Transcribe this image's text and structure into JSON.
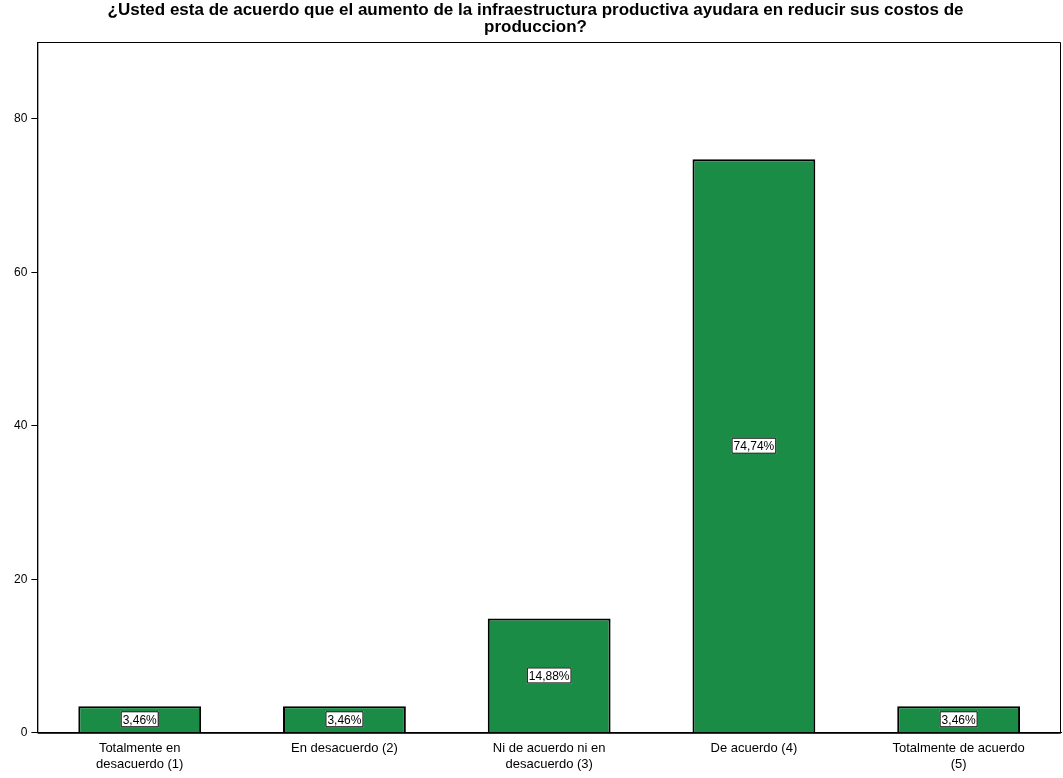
{
  "chart_data": {
    "type": "bar",
    "title": "¿Usted esta de acuerdo que el aumento de la infraestructura productiva ayudara en reducir sus costos de produccion?",
    "categories": [
      "Totalmente en desacuerdo (1)",
      "En desacuerdo (2)",
      "Ni de acuerdo ni en desacuerdo (3)",
      "De acuerdo (4)",
      "Totalmente de acuerdo (5)"
    ],
    "values": [
      3.46,
      3.46,
      14.88,
      74.74,
      3.46
    ],
    "value_labels": [
      "3,46%",
      "3,46%",
      "14,88%",
      "74,74%",
      "3,46%"
    ],
    "color": "#1b8c46",
    "ylim": [
      0,
      90
    ],
    "yticks": [
      0,
      20,
      40,
      60,
      80
    ],
    "grid": false,
    "legend": false
  }
}
